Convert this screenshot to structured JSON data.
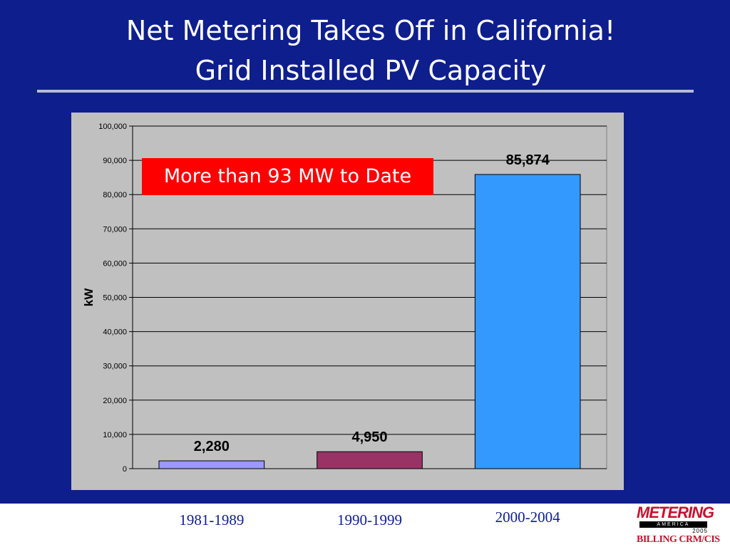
{
  "slide": {
    "title_line1": "Net Metering Takes Off in California!",
    "title_line2": "Grid Installed PV Capacity",
    "callout": "More than 93 MW to Date",
    "logo": {
      "line1": "METERING",
      "line2": "AMERICA",
      "line3": "2005",
      "line4": "BILLING CRM/CIS"
    }
  },
  "colors": {
    "background": "#0e1e8c",
    "plot_area": "#c0c0c0",
    "callout": "#ff0000",
    "bar_colors": [
      "#9999ff",
      "#993366",
      "#3399ff"
    ]
  },
  "chart_data": {
    "type": "bar",
    "categories": [
      "1981-1989",
      "1990-1999",
      "2000-2004"
    ],
    "values": [
      2280,
      4950,
      85874
    ],
    "data_labels": [
      "2,280",
      "4,950",
      "85,874"
    ],
    "ylabel": "kW",
    "ylim": [
      0,
      100000
    ],
    "y_ticks": [
      0,
      10000,
      20000,
      30000,
      40000,
      50000,
      60000,
      70000,
      80000,
      90000,
      100000
    ],
    "y_tick_labels": [
      "0",
      "10,000",
      "20,000",
      "30,000",
      "40,000",
      "50,000",
      "60,000",
      "70,000",
      "80,000",
      "90,000",
      "100,000"
    ],
    "grid": true,
    "legend": "none"
  }
}
